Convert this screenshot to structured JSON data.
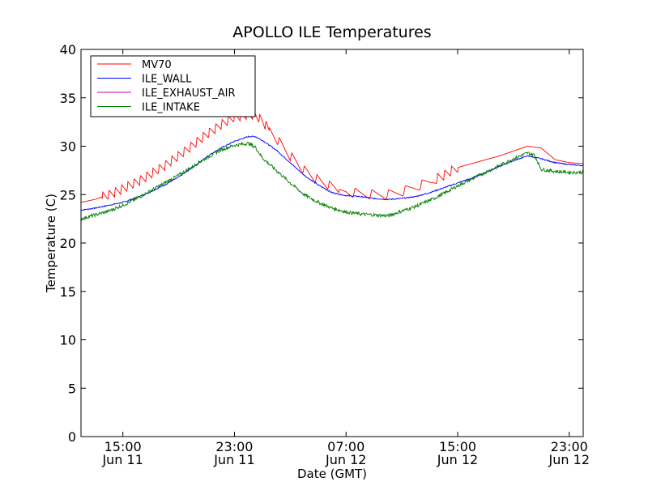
{
  "chart_data": {
    "type": "line",
    "title": "APOLLO ILE Temperatures",
    "xlabel": "Date (GMT)",
    "ylabel": "Temperature (C)",
    "x_unit": "hours since Jun 11 11:00 GMT",
    "xlim": [
      0,
      36
    ],
    "ylim": [
      0,
      40
    ],
    "yticks": [
      0,
      5,
      10,
      15,
      20,
      25,
      30,
      35,
      40
    ],
    "xticks": [
      {
        "x": 3,
        "time": "15:00",
        "date": "Jun 11"
      },
      {
        "x": 11,
        "time": "23:00",
        "date": "Jun 11"
      },
      {
        "x": 19,
        "time": "07:00",
        "date": "Jun 12"
      },
      {
        "x": 27,
        "time": "15:00",
        "date": "Jun 12"
      },
      {
        "x": 35,
        "time": "23:00",
        "date": "Jun 12"
      }
    ],
    "legend_position": "top-left",
    "series": [
      {
        "name": "MV70",
        "color": "#ff0000",
        "x": [
          0,
          1,
          2,
          3,
          4,
          5,
          6,
          7,
          8,
          9,
          10,
          11,
          12,
          12.5,
          13,
          14,
          15,
          16,
          17,
          18,
          19,
          20,
          21,
          22,
          23,
          24,
          25,
          26,
          27,
          28,
          29,
          30,
          31,
          32,
          33,
          34,
          35,
          36
        ],
        "values": [
          24.2,
          24.5,
          25.0,
          25.6,
          26.3,
          27.1,
          28.0,
          29.0,
          30.1,
          31.2,
          32.2,
          33.0,
          33.3,
          33.2,
          32.6,
          30.8,
          29.0,
          27.5,
          26.5,
          25.8,
          25.3,
          25.1,
          25.0,
          25.0,
          25.3,
          25.8,
          26.3,
          27.0,
          27.8,
          28.2,
          28.6,
          29.0,
          29.5,
          30.0,
          29.8,
          28.6,
          28.3,
          28.2
        ],
        "sawtooth": {
          "period_h": 0.45,
          "amplitude": 1.0,
          "x_range": [
            1.5,
            13.5
          ]
        }
      },
      {
        "name": "ILE_WALL",
        "color": "#0000ff",
        "x": [
          0,
          1,
          2,
          3,
          4,
          5,
          6,
          7,
          8,
          9,
          10,
          11,
          12,
          12.5,
          13,
          14,
          15,
          16,
          17,
          18,
          19,
          20,
          21,
          22,
          23,
          24,
          25,
          26,
          27,
          28,
          29,
          30,
          31,
          32,
          33,
          34,
          35,
          36
        ],
        "values": [
          23.4,
          23.6,
          23.9,
          24.2,
          24.7,
          25.3,
          26.0,
          26.8,
          27.8,
          28.9,
          29.8,
          30.5,
          31.0,
          31.0,
          30.6,
          29.6,
          28.3,
          27.0,
          26.0,
          25.2,
          24.9,
          24.8,
          24.6,
          24.5,
          24.6,
          24.8,
          25.2,
          25.7,
          26.2,
          26.7,
          27.3,
          27.9,
          28.5,
          29.0,
          28.7,
          28.3,
          28.1,
          28.0
        ]
      },
      {
        "name": "ILE_EXHAUST_AIR",
        "color": "#bf00bf",
        "x": [],
        "values": []
      },
      {
        "name": "ILE_INTAKE",
        "color": "#008000",
        "x": [
          0,
          1,
          2,
          3,
          4,
          5,
          6,
          7,
          8,
          9,
          10,
          11,
          12,
          12.5,
          13,
          14,
          15,
          16,
          17,
          18,
          19,
          20,
          21,
          22,
          23,
          24,
          25,
          26,
          27,
          28,
          29,
          30,
          31,
          32,
          32.5,
          33,
          34,
          35,
          36
        ],
        "values": [
          22.5,
          22.9,
          23.3,
          23.9,
          24.6,
          25.4,
          26.2,
          27.0,
          27.9,
          28.8,
          29.6,
          30.1,
          30.3,
          29.9,
          28.8,
          27.5,
          26.2,
          25.0,
          24.2,
          23.6,
          23.2,
          23.0,
          22.9,
          22.8,
          23.3,
          23.8,
          24.4,
          25.1,
          25.9,
          26.6,
          27.3,
          28.0,
          28.7,
          29.3,
          29.1,
          27.6,
          27.4,
          27.3,
          27.3
        ]
      }
    ]
  }
}
